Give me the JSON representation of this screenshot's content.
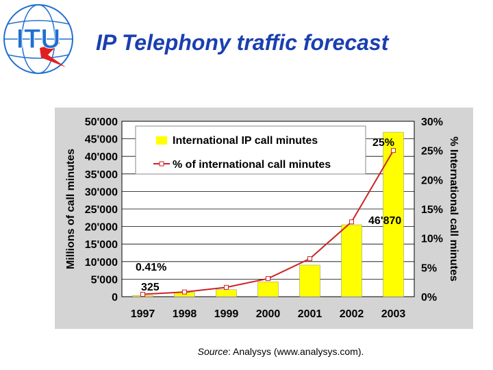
{
  "header": {
    "logo_text": "ITU",
    "title": "IP Telephony traffic forecast"
  },
  "footer": {
    "source_label": "Source",
    "source_text": ": Analysys (www.analysys.com)."
  },
  "colors": {
    "title": "#1a3fb0",
    "panel_bg": "#d4d4d4",
    "bar_fill": "#ffff00",
    "line": "#cc2222",
    "logo_blue": "#1f6fd0",
    "logo_red": "#e02020"
  },
  "chart_data": {
    "type": "bar",
    "categories": [
      "1997",
      "1998",
      "1999",
      "2000",
      "2001",
      "2002",
      "2003"
    ],
    "ylabel": "Millions of call minutes",
    "y2label": "% International call minutes",
    "ylim": [
      0,
      50000
    ],
    "y2lim": [
      0,
      30
    ],
    "yticks": [
      "0",
      "5'000",
      "10'000",
      "15'000",
      "20'000",
      "25'000",
      "30'000",
      "35'000",
      "40'000",
      "45'000",
      "50'000"
    ],
    "y2ticks": [
      "0%",
      "5%",
      "10%",
      "15%",
      "20%",
      "25%",
      "30%"
    ],
    "grid": true,
    "legend_position": "top-left",
    "series": [
      {
        "name": "International IP call minutes",
        "kind": "bar",
        "axis": "left",
        "values": [
          325,
          1200,
          2000,
          4200,
          9000,
          20500,
          46870
        ]
      },
      {
        "name": "% of international call minutes",
        "kind": "line",
        "axis": "right",
        "values": [
          0.41,
          0.8,
          1.6,
          3.1,
          6.5,
          12.8,
          25
        ]
      }
    ],
    "annotations": [
      "0.41%",
      "325",
      "25%",
      "46'870"
    ]
  }
}
